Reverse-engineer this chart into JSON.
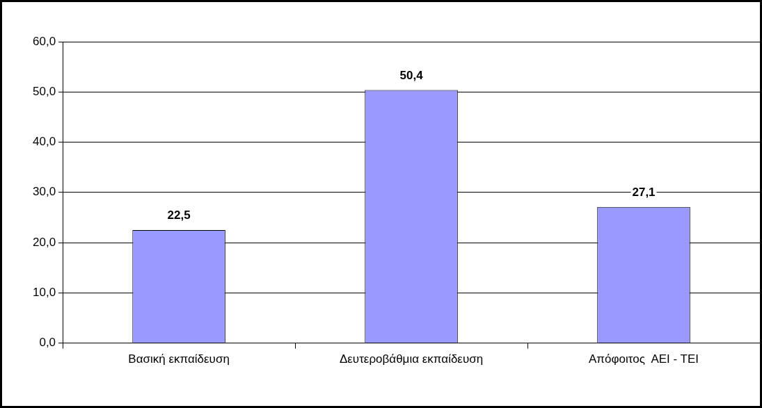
{
  "chart_data": {
    "type": "bar",
    "categories": [
      "Βασική εκπαίδευση",
      "Δευτεροβάθμια εκπαίδευση",
      "Απόφοιτος  ΑΕΙ - ΤΕΙ"
    ],
    "values": [
      22.5,
      50.4,
      27.1
    ],
    "color": "#9999ff",
    "value_labels": [
      "22,5",
      "50,4",
      "27,1"
    ],
    "ylim": [
      0,
      60
    ],
    "yticks": [
      {
        "value": 0,
        "label": "0,0"
      },
      {
        "value": 10,
        "label": "10,0"
      },
      {
        "value": 20,
        "label": "20,0"
      },
      {
        "value": 30,
        "label": "30,0"
      },
      {
        "value": 40,
        "label": "40,0"
      },
      {
        "value": 50,
        "label": "50,0"
      },
      {
        "value": 60,
        "label": "60,0"
      }
    ],
    "grid": "y",
    "legend": false
  }
}
